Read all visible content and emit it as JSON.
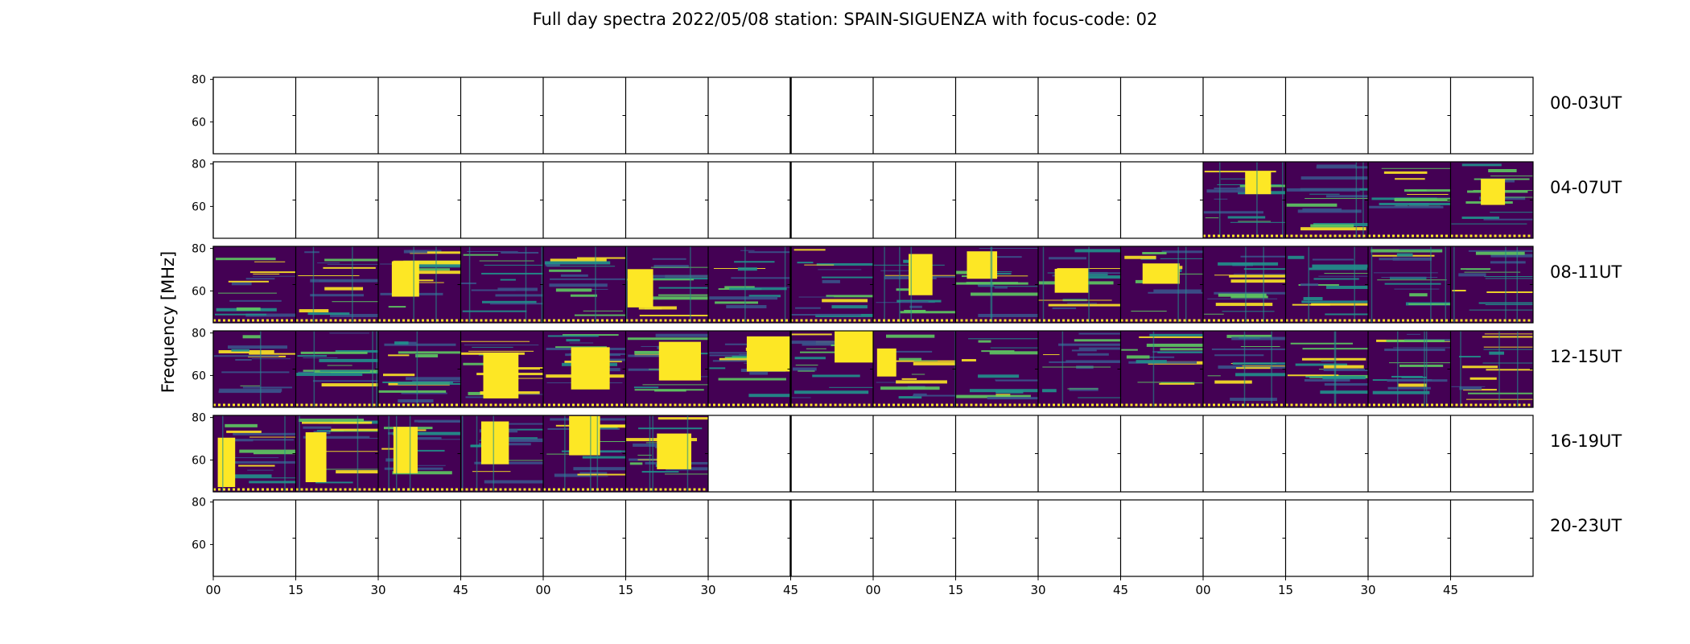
{
  "chart_data": {
    "type": "heatmap",
    "title": "Full day spectra 2022/05/08 station: SPAIN-SIGUENZA with focus-code: 02",
    "ylabel": "Frequency [MHz]",
    "ylim": [
      45,
      81
    ],
    "y_ticks": [
      60,
      80
    ],
    "x_ticks": [
      "00",
      "15",
      "30",
      "45",
      "00",
      "15",
      "30",
      "45",
      "00",
      "15",
      "30",
      "45",
      "00",
      "15",
      "30",
      "45"
    ],
    "rows": [
      {
        "label": "00-03UT",
        "panels": [
          0,
          0,
          0,
          0,
          0,
          0,
          0,
          0,
          0,
          0,
          0,
          0,
          0,
          0,
          0,
          0
        ]
      },
      {
        "label": "04-07UT",
        "panels": [
          0,
          0,
          0,
          0,
          0,
          0,
          0,
          0,
          0,
          0,
          0,
          0,
          1,
          1,
          1,
          1
        ]
      },
      {
        "label": "08-11UT",
        "panels": [
          1,
          1,
          1,
          1,
          1,
          1,
          1,
          1,
          1,
          1,
          1,
          1,
          1,
          1,
          1,
          1
        ]
      },
      {
        "label": "12-15UT",
        "panels": [
          1,
          1,
          1,
          1,
          1,
          1,
          1,
          1,
          1,
          1,
          1,
          1,
          1,
          1,
          1,
          1
        ]
      },
      {
        "label": "16-19UT",
        "panels": [
          1,
          1,
          1,
          1,
          1,
          1,
          0,
          0,
          0,
          0,
          0,
          0,
          0,
          0,
          0,
          0
        ]
      },
      {
        "label": "20-23UT",
        "panels": [
          0,
          0,
          0,
          0,
          0,
          0,
          0,
          0,
          0,
          0,
          0,
          0,
          0,
          0,
          0,
          0
        ]
      }
    ],
    "colormap": [
      "#440154",
      "#3b528b",
      "#21918c",
      "#5ec962",
      "#fde725"
    ]
  }
}
